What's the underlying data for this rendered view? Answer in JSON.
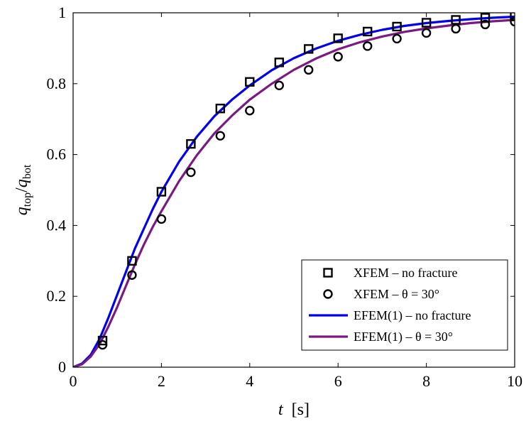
{
  "chart_data": {
    "type": "line",
    "xlabel_var": "t",
    "xlabel_unit": "[s]",
    "ylabel_num": "q",
    "ylabel_num_sub": "top",
    "ylabel_den": "q",
    "ylabel_den_sub": "bot",
    "xlim": [
      0,
      10
    ],
    "ylim": [
      0,
      1
    ],
    "x_ticks": [
      0,
      2,
      4,
      6,
      8,
      10
    ],
    "y_ticks": [
      0,
      0.2,
      0.4,
      0.6,
      0.8,
      1
    ],
    "x_tick_labels": [
      "0",
      "2",
      "4",
      "6",
      "8",
      "10"
    ],
    "y_tick_labels": [
      "0",
      "0.2",
      "0.4",
      "0.6",
      "0.8",
      "1"
    ],
    "grid": false,
    "legend_position": "bottom-right",
    "series": [
      {
        "name": "XFEM – no fracture",
        "kind": "markers",
        "marker": "square",
        "color": "#000000",
        "x": [
          0.667,
          1.333,
          2.0,
          2.667,
          3.333,
          4.0,
          4.667,
          5.333,
          6.0,
          6.667,
          7.333,
          8.0,
          8.667,
          9.333,
          10.0
        ],
        "y": [
          0.075,
          0.3,
          0.495,
          0.63,
          0.73,
          0.805,
          0.86,
          0.898,
          0.928,
          0.947,
          0.961,
          0.972,
          0.98,
          0.986,
          0.99
        ]
      },
      {
        "name": "XFEM – θ = 30°",
        "kind": "markers",
        "marker": "circle",
        "color": "#000000",
        "x": [
          0.667,
          1.333,
          2.0,
          2.667,
          3.333,
          4.0,
          4.667,
          5.333,
          6.0,
          6.667,
          7.333,
          8.0,
          8.667,
          9.333,
          10.0
        ],
        "y": [
          0.063,
          0.26,
          0.418,
          0.55,
          0.653,
          0.724,
          0.795,
          0.839,
          0.876,
          0.906,
          0.927,
          0.943,
          0.955,
          0.967,
          0.975
        ]
      },
      {
        "name": "EFEM(1) – no fracture",
        "kind": "line",
        "color": "#0000ee",
        "x": [
          0,
          0.2,
          0.4,
          0.6,
          0.8,
          1.0,
          1.2,
          1.4,
          1.6,
          1.8,
          2.0,
          2.4,
          2.8,
          3.2,
          3.6,
          4.0,
          4.5,
          5.0,
          5.5,
          6.0,
          6.5,
          7.0,
          7.5,
          8.0,
          8.5,
          9.0,
          9.5,
          10.0
        ],
        "y": [
          0,
          0.01,
          0.035,
          0.08,
          0.14,
          0.205,
          0.27,
          0.335,
          0.39,
          0.445,
          0.495,
          0.58,
          0.65,
          0.708,
          0.755,
          0.795,
          0.838,
          0.872,
          0.899,
          0.921,
          0.938,
          0.952,
          0.963,
          0.971,
          0.977,
          0.982,
          0.986,
          0.989
        ]
      },
      {
        "name": "EFEM(1) – θ = 30°",
        "kind": "line",
        "color": "#7a1a80",
        "x": [
          0,
          0.2,
          0.4,
          0.6,
          0.8,
          1.0,
          1.2,
          1.4,
          1.6,
          1.8,
          2.0,
          2.4,
          2.8,
          3.2,
          3.6,
          4.0,
          4.5,
          5.0,
          5.5,
          6.0,
          6.5,
          7.0,
          7.5,
          8.0,
          8.5,
          9.0,
          9.5,
          10.0
        ],
        "y": [
          0,
          0.008,
          0.03,
          0.065,
          0.115,
          0.17,
          0.23,
          0.29,
          0.345,
          0.395,
          0.44,
          0.525,
          0.598,
          0.66,
          0.71,
          0.755,
          0.8,
          0.839,
          0.871,
          0.897,
          0.917,
          0.933,
          0.946,
          0.956,
          0.964,
          0.971,
          0.976,
          0.98
        ]
      }
    ]
  }
}
